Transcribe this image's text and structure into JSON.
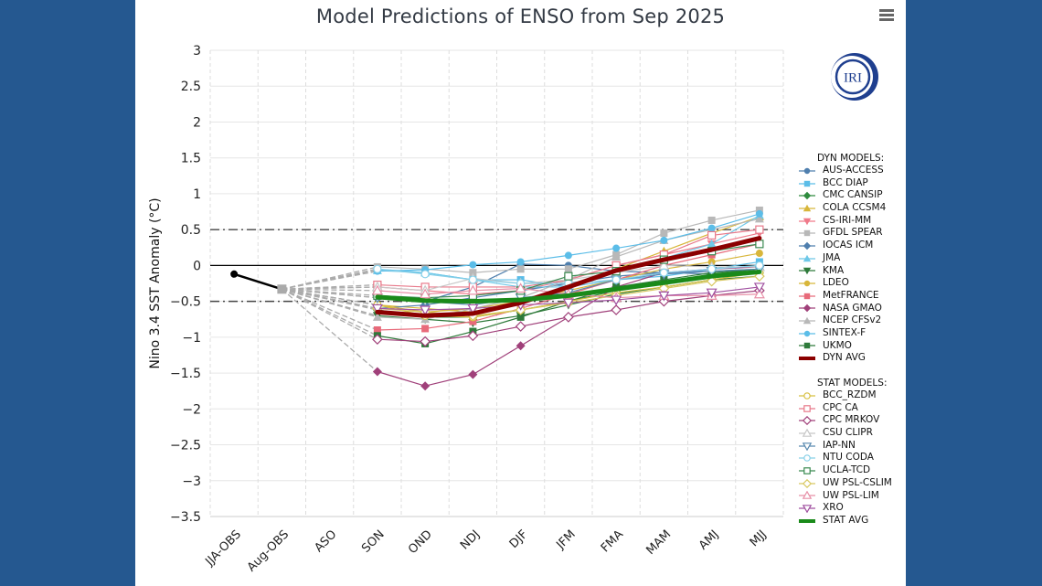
{
  "title": "Model Predictions of ENSO from Sep 2025",
  "menu_icon": "hamburger-menu-icon",
  "logo_text": "IRI",
  "colors": {
    "background": "#255890",
    "panel": "#ffffff",
    "logo": "#1f3f8f"
  },
  "chart_data": {
    "type": "line",
    "title": "Model Predictions of ENSO from Sep 2025",
    "xlabel": "",
    "ylabel": "Nino 3.4 SST Anomaly (°C)",
    "categories": [
      "JJA-OBS",
      "Aug-OBS",
      "ASO",
      "SON",
      "OND",
      "NDJ",
      "DJF",
      "JFM",
      "FMA",
      "MAM",
      "AMJ",
      "MJJ"
    ],
    "ylim": [
      -3.5,
      3
    ],
    "yticks": [
      3,
      2.5,
      2,
      1.5,
      1,
      0.5,
      0,
      -0.5,
      -1,
      -1.5,
      -2,
      -2.5,
      -3,
      -3.5
    ],
    "ytick_labels": [
      "3",
      "2.5",
      "2",
      "1.5",
      "1",
      "0.5",
      "0",
      "−0.5",
      "−1",
      "−1.5",
      "−2",
      "−2.5",
      "−3",
      "−3.5"
    ],
    "reference_lines": [
      {
        "value": 0,
        "style": "solid"
      },
      {
        "value": 0.5,
        "style": "dash-dot"
      },
      {
        "value": -0.5,
        "style": "dash-dot"
      }
    ],
    "grid": true,
    "legend_position": "right",
    "observed": {
      "name": "Observed",
      "color": "#000000",
      "values": [
        -0.12,
        -0.33
      ]
    },
    "groups": [
      {
        "header": "DYN MODELS:",
        "series": [
          {
            "name": "AUS-ACCESS",
            "color": "#4f7fae",
            "marker": "circle",
            "filled": true,
            "values": [
              null,
              null,
              null,
              -0.45,
              -0.5,
              -0.3,
              0.02,
              0.0,
              -0.08,
              -0.1,
              -0.12,
              -0.1
            ]
          },
          {
            "name": "BCC DIAP",
            "color": "#5bbde8",
            "marker": "square",
            "filled": true,
            "values": [
              null,
              null,
              null,
              -0.05,
              -0.1,
              -0.2,
              -0.2,
              -0.3,
              -0.2,
              -0.15,
              -0.05,
              0.05
            ]
          },
          {
            "name": "CMC CANSIP",
            "color": "#2e8b3e",
            "marker": "diamond",
            "filled": true,
            "values": [
              null,
              null,
              null,
              -0.62,
              -0.72,
              -0.72,
              -0.62,
              -0.5,
              -0.35,
              -0.25,
              -0.12,
              -0.05
            ]
          },
          {
            "name": "COLA CCSM4",
            "color": "#d8b63a",
            "marker": "triangle",
            "filled": true,
            "values": [
              null,
              null,
              null,
              -0.55,
              -0.6,
              -0.65,
              -0.5,
              -0.3,
              -0.05,
              0.2,
              0.45,
              0.68
            ]
          },
          {
            "name": "CS-IRI-MM",
            "color": "#f07a8a",
            "marker": "triangle-down",
            "filled": true,
            "values": [
              null,
              null,
              null,
              -0.3,
              -0.35,
              -0.4,
              -0.35,
              -0.2,
              0.0,
              0.15,
              0.3,
              0.45
            ]
          },
          {
            "name": "GFDL SPEAR",
            "color": "#b8b8b8",
            "marker": "square",
            "filled": true,
            "values": [
              null,
              null,
              null,
              -0.02,
              -0.05,
              -0.1,
              -0.05,
              -0.05,
              0.15,
              0.45,
              0.63,
              0.77
            ]
          },
          {
            "name": "IOCAS ICM",
            "color": "#4f7fae",
            "marker": "diamond",
            "filled": true,
            "values": [
              null,
              null,
              null,
              -0.6,
              -0.55,
              -0.45,
              -0.35,
              -0.25,
              -0.15,
              -0.1,
              -0.08,
              -0.05
            ]
          },
          {
            "name": "JMA",
            "color": "#6ec8e8",
            "marker": "triangle",
            "filled": true,
            "values": [
              null,
              null,
              null,
              -0.07,
              -0.1,
              -0.2,
              -0.3,
              -0.3,
              -0.1,
              0.1,
              0.3,
              0.7
            ]
          },
          {
            "name": "KMA",
            "color": "#2e7a3a",
            "marker": "triangle-down",
            "filled": true,
            "values": [
              null,
              null,
              null,
              -0.7,
              -0.75,
              -0.8,
              -0.7,
              -0.55,
              -0.4,
              -0.3,
              -0.2,
              -0.15
            ]
          },
          {
            "name": "LDEO",
            "color": "#d8b63a",
            "marker": "circle",
            "filled": true,
            "values": [
              null,
              null,
              null,
              -0.55,
              -0.65,
              -0.6,
              -0.5,
              -0.35,
              -0.2,
              -0.05,
              0.05,
              0.17
            ]
          },
          {
            "name": "MetFRANCE",
            "color": "#e86a7a",
            "marker": "square",
            "filled": true,
            "values": [
              null,
              null,
              null,
              -0.9,
              -0.88,
              -0.78,
              -0.6,
              -0.4,
              -0.2,
              0.0,
              0.15,
              0.3
            ]
          },
          {
            "name": "NASA GMAO",
            "color": "#a0407a",
            "marker": "diamond",
            "filled": true,
            "values": [
              null,
              null,
              null,
              -1.48,
              -1.68,
              -1.52,
              -1.12,
              -0.72,
              -0.3,
              -0.1,
              -0.05,
              -0.02
            ]
          },
          {
            "name": "NCEP CFSv2",
            "color": "#b8b8b8",
            "marker": "triangle",
            "filled": true,
            "values": [
              null,
              null,
              null,
              -0.72,
              -0.75,
              -0.6,
              -0.45,
              -0.2,
              0.12,
              0.35,
              0.5,
              0.65
            ]
          },
          {
            "name": "SINTEX-F",
            "color": "#5bbde8",
            "marker": "circle",
            "filled": true,
            "values": [
              null,
              null,
              null,
              -0.08,
              -0.06,
              0.01,
              0.05,
              0.14,
              0.24,
              0.35,
              0.52,
              0.72
            ]
          },
          {
            "name": "UKMO",
            "color": "#2e7a3a",
            "marker": "square",
            "filled": true,
            "values": [
              null,
              null,
              null,
              -0.98,
              -1.09,
              -0.92,
              -0.72,
              -0.5,
              -0.3,
              -0.2,
              -0.1,
              -0.05
            ]
          },
          {
            "name": "DYN AVG",
            "color": "#8b0000",
            "marker": "none",
            "thick": true,
            "values": [
              null,
              null,
              null,
              -0.65,
              -0.7,
              -0.67,
              -0.52,
              -0.3,
              -0.07,
              0.08,
              0.22,
              0.38
            ]
          }
        ]
      },
      {
        "header": "STAT MODELS:",
        "series": [
          {
            "name": "BCC_RZDM",
            "color": "#d8c040",
            "marker": "circle",
            "filled": false,
            "values": [
              null,
              null,
              null,
              -0.55,
              -0.7,
              -0.72,
              -0.62,
              -0.5,
              -0.38,
              -0.3,
              -0.2,
              -0.1
            ]
          },
          {
            "name": "CPC CA",
            "color": "#e8798a",
            "marker": "square",
            "filled": false,
            "values": [
              null,
              null,
              null,
              -0.27,
              -0.3,
              -0.3,
              -0.3,
              -0.2,
              0.0,
              0.15,
              0.42,
              0.5
            ]
          },
          {
            "name": "CPC MRKOV",
            "color": "#a0407a",
            "marker": "diamond",
            "filled": false,
            "values": [
              null,
              null,
              null,
              -1.03,
              -1.06,
              -0.98,
              -0.85,
              -0.72,
              -0.62,
              -0.5,
              -0.42,
              -0.35
            ]
          },
          {
            "name": "CSU CLIPR",
            "color": "#c8c8c8",
            "marker": "triangle",
            "filled": false,
            "values": [
              null,
              null,
              null,
              -0.3,
              -0.35,
              -0.18,
              -0.25,
              -0.2,
              -0.1,
              0.0,
              -0.02,
              -0.02
            ]
          },
          {
            "name": "IAP-NN",
            "color": "#5a8ab0",
            "marker": "triangle-down",
            "filled": false,
            "values": [
              null,
              null,
              null,
              -0.45,
              -0.5,
              -0.55,
              -0.45,
              -0.38,
              -0.2,
              -0.12,
              -0.08,
              -0.05
            ]
          },
          {
            "name": "NTU CODA",
            "color": "#88d0e8",
            "marker": "circle",
            "filled": false,
            "values": [
              null,
              null,
              null,
              -0.05,
              -0.12,
              -0.2,
              -0.25,
              -0.25,
              -0.2,
              -0.1,
              -0.05,
              0.0
            ]
          },
          {
            "name": "UCLA-TCD",
            "color": "#3a8a50",
            "marker": "square",
            "filled": false,
            "values": [
              null,
              null,
              null,
              -0.42,
              -0.45,
              -0.42,
              -0.35,
              -0.15,
              -0.08,
              0.08,
              0.2,
              0.3
            ]
          },
          {
            "name": "UW PSL-CSLIM",
            "color": "#d8c860",
            "marker": "diamond",
            "filled": false,
            "values": [
              null,
              null,
              null,
              -0.6,
              -0.65,
              -0.7,
              -0.62,
              -0.52,
              -0.42,
              -0.32,
              -0.22,
              -0.15
            ]
          },
          {
            "name": "UW PSL-LIM",
            "color": "#e890a8",
            "marker": "triangle",
            "filled": false,
            "values": [
              null,
              null,
              null,
              -0.35,
              -0.4,
              -0.35,
              -0.32,
              -0.4,
              -0.45,
              -0.42,
              -0.42,
              -0.4
            ]
          },
          {
            "name": "XRO",
            "color": "#a050a0",
            "marker": "triangle-down",
            "filled": false,
            "values": [
              null,
              null,
              null,
              -0.6,
              -0.62,
              -0.6,
              -0.55,
              -0.52,
              -0.48,
              -0.42,
              -0.38,
              -0.3
            ]
          },
          {
            "name": "STAT AVG",
            "color": "#1a8a1a",
            "marker": "none",
            "thick": true,
            "values": [
              null,
              null,
              null,
              -0.44,
              -0.49,
              -0.5,
              -0.48,
              -0.42,
              -0.33,
              -0.24,
              -0.15,
              -0.09
            ]
          }
        ]
      }
    ]
  }
}
